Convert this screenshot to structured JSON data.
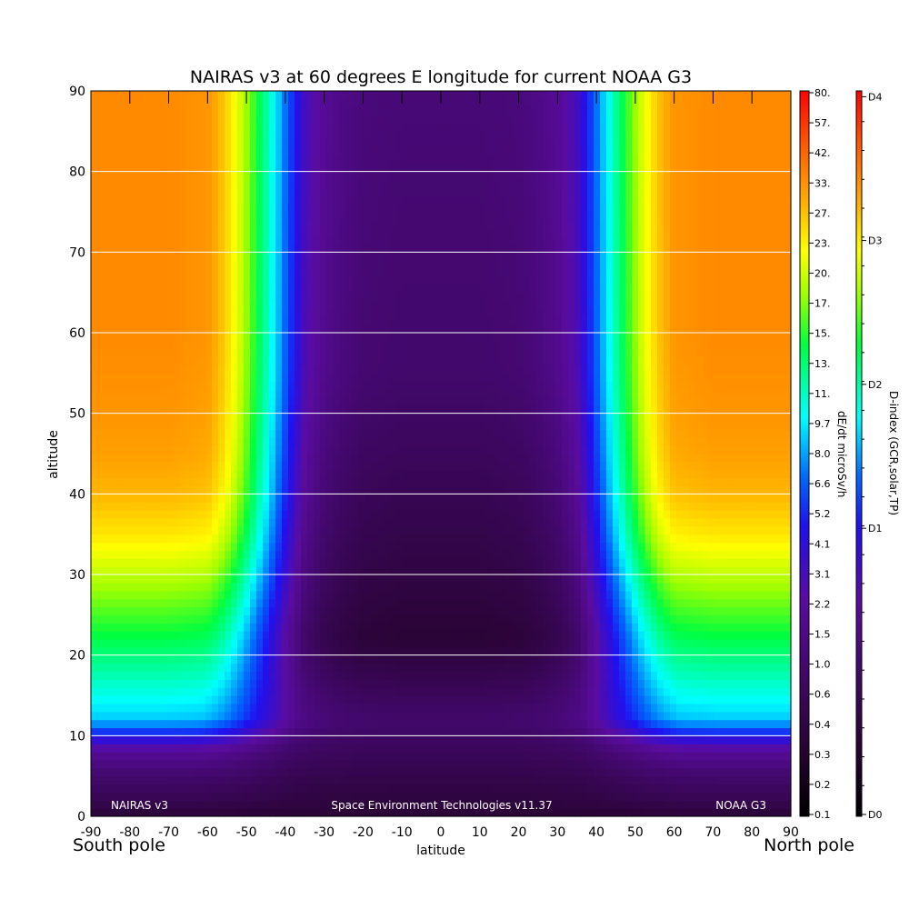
{
  "chart_data": {
    "type": "heatmap",
    "title": "NAIRAS v3 at 60 degrees E longitude for current NOAA G3",
    "xlabel": "latitude",
    "ylabel": "altitude",
    "xlim": [
      -90,
      90
    ],
    "ylim": [
      0,
      90
    ],
    "x_ticks": [
      "-90",
      "-80",
      "-70",
      "-60",
      "-50",
      "-40",
      "-30",
      "-20",
      "-10",
      "0",
      "10",
      "20",
      "30",
      "40",
      "50",
      "60",
      "70",
      "80",
      "90"
    ],
    "y_ticks": [
      "0",
      "10",
      "20",
      "30",
      "40",
      "50",
      "60",
      "70",
      "80",
      "90"
    ],
    "x_end_labels": {
      "left": "South pole",
      "right": "North pole"
    },
    "grid": "horizontal lines at 10, 20, 30, 40, 50, 60, 70, 80",
    "colorbar_dose": {
      "label": "dE/dt microSv/h",
      "ticks": [
        "0.1",
        "0.2",
        "0.3",
        "0.4",
        "0.6",
        "1.0",
        "1.5",
        "2.2",
        "3.1",
        "4.1",
        "5.2",
        "6.6",
        "8.0",
        "9.7",
        "11.",
        "13.",
        "15.",
        "17.",
        "20.",
        "23.",
        "27.",
        "33.",
        "42.",
        "57.",
        "80."
      ]
    },
    "colorbar_dindex": {
      "label": "D-index (GCR,solar,TP)",
      "ticks": [
        "D0",
        "D1",
        "D2",
        "D3",
        "D4"
      ],
      "tick_fraction": [
        0.0,
        0.3965,
        0.5959,
        0.7952,
        0.9945
      ]
    },
    "footer": {
      "left": "NAIRAS v3",
      "center": "Space Environment Technologies v11.37",
      "right": "NOAA G3"
    },
    "field_description": {
      "units": "colorbar fraction 0 (0.1 microSv/h, black) to 1 (80 microSv/h, red)",
      "lat_nodes": [
        0,
        10,
        20,
        25,
        30,
        35,
        38,
        41,
        44,
        47,
        50,
        53,
        56,
        60,
        70,
        80,
        90
      ],
      "lat_high_alt": [
        0.22,
        0.22,
        0.23,
        0.25,
        0.28,
        0.34,
        0.42,
        0.5,
        0.58,
        0.65,
        0.72,
        0.78,
        0.83,
        0.87,
        0.88,
        0.88,
        0.88
      ],
      "alt_nodes": [
        0,
        2,
        5,
        8,
        10,
        12,
        15,
        20,
        25,
        30,
        35,
        40,
        45,
        50,
        60,
        70,
        80,
        90
      ],
      "alt_curve": [
        0.1,
        0.15,
        0.2,
        0.28,
        0.4,
        0.52,
        0.56,
        0.62,
        0.68,
        0.74,
        0.8,
        0.84,
        0.86,
        0.87,
        0.88,
        0.88,
        0.88,
        0.88
      ],
      "shoulder_shift": [
        [
          0,
          2
        ],
        [
          10,
          2
        ],
        [
          15,
          1
        ],
        [
          20,
          0.5
        ],
        [
          30,
          0
        ],
        [
          90,
          0
        ]
      ]
    }
  }
}
